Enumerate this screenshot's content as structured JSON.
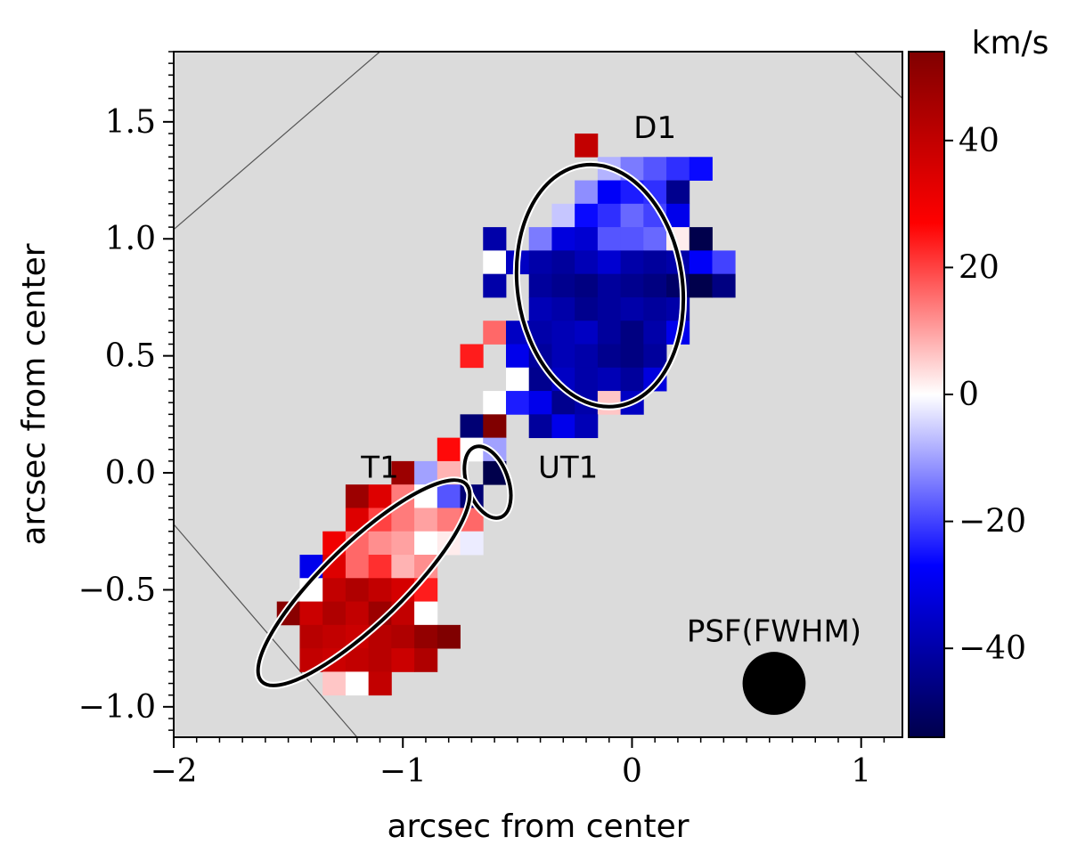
{
  "chart_data": {
    "type": "heatmap",
    "xlabel": "arcsec from center",
    "ylabel": "arcsec from center",
    "xlim": [
      -2.0,
      1.18
    ],
    "ylim": [
      -1.13,
      1.8
    ],
    "xticks": [
      -2,
      -1,
      0,
      1
    ],
    "xtick_labels": [
      "−2",
      "−1",
      "0",
      "1"
    ],
    "yticks": [
      -1.0,
      -0.5,
      0.0,
      0.5,
      1.0,
      1.5
    ],
    "ytick_labels": [
      "−1.0",
      "−0.5",
      "0.0",
      "0.5",
      "1.0",
      "1.5"
    ],
    "colorbar": {
      "label": "km/s",
      "colormap": "seismic",
      "range": [
        -54,
        54
      ],
      "ticks": [
        -40,
        -20,
        0,
        20,
        40
      ],
      "tick_labels": [
        "−40",
        "−20",
        "0",
        "20",
        "40"
      ]
    },
    "pixel_size_arcsec": 0.1,
    "pixels": [
      [
        -0.2,
        1.4,
        40
      ],
      [
        -0.1,
        1.3,
        -8
      ],
      [
        0.0,
        1.3,
        -14
      ],
      [
        0.1,
        1.3,
        -18
      ],
      [
        0.2,
        1.3,
        -22
      ],
      [
        0.3,
        1.3,
        -26
      ],
      [
        -0.2,
        1.2,
        -12
      ],
      [
        -0.1,
        1.2,
        -28
      ],
      [
        0.0,
        1.2,
        -24
      ],
      [
        0.1,
        1.2,
        -22
      ],
      [
        0.2,
        1.2,
        -44
      ],
      [
        -0.3,
        1.1,
        -6
      ],
      [
        -0.2,
        1.1,
        -26
      ],
      [
        -0.1,
        1.1,
        -22
      ],
      [
        0.0,
        1.1,
        -16
      ],
      [
        0.1,
        1.1,
        -20
      ],
      [
        0.2,
        1.1,
        -30
      ],
      [
        -0.6,
        1.0,
        -40
      ],
      [
        -0.4,
        1.0,
        -14
      ],
      [
        -0.3,
        1.0,
        -32
      ],
      [
        -0.2,
        1.0,
        -34
      ],
      [
        -0.1,
        1.0,
        -18
      ],
      [
        0.0,
        1.0,
        -18
      ],
      [
        0.1,
        1.0,
        -16
      ],
      [
        0.2,
        1.0,
        2
      ],
      [
        0.3,
        1.0,
        -54
      ],
      [
        -0.6,
        0.9,
        0
      ],
      [
        -0.5,
        0.9,
        -36
      ],
      [
        -0.4,
        0.9,
        -40
      ],
      [
        -0.3,
        0.9,
        -42
      ],
      [
        -0.2,
        0.9,
        -38
      ],
      [
        -0.1,
        0.9,
        -34
      ],
      [
        0.0,
        0.9,
        -40
      ],
      [
        0.1,
        0.9,
        -42
      ],
      [
        0.2,
        0.9,
        -40
      ],
      [
        0.3,
        0.9,
        -28
      ],
      [
        0.4,
        0.9,
        -20
      ],
      [
        -0.6,
        0.8,
        -40
      ],
      [
        -0.4,
        0.8,
        -42
      ],
      [
        -0.3,
        0.8,
        -44
      ],
      [
        -0.2,
        0.8,
        -46
      ],
      [
        -0.1,
        0.8,
        -42
      ],
      [
        0.0,
        0.8,
        -44
      ],
      [
        0.1,
        0.8,
        -46
      ],
      [
        0.2,
        0.8,
        -50
      ],
      [
        0.3,
        0.8,
        -54
      ],
      [
        0.4,
        0.8,
        -46
      ],
      [
        -0.4,
        0.7,
        -38
      ],
      [
        -0.3,
        0.7,
        -40
      ],
      [
        -0.2,
        0.7,
        -44
      ],
      [
        -0.1,
        0.7,
        -42
      ],
      [
        0.0,
        0.7,
        -40
      ],
      [
        0.1,
        0.7,
        -42
      ],
      [
        0.2,
        0.7,
        -40
      ],
      [
        -0.6,
        0.6,
        16
      ],
      [
        -0.5,
        0.6,
        -36
      ],
      [
        -0.4,
        0.6,
        -40
      ],
      [
        -0.3,
        0.6,
        -38
      ],
      [
        -0.2,
        0.6,
        -36
      ],
      [
        -0.1,
        0.6,
        -42
      ],
      [
        0.0,
        0.6,
        -46
      ],
      [
        0.1,
        0.6,
        -40
      ],
      [
        0.2,
        0.6,
        -30
      ],
      [
        -0.7,
        0.5,
        24
      ],
      [
        -0.5,
        0.5,
        -30
      ],
      [
        -0.4,
        0.5,
        -42
      ],
      [
        -0.3,
        0.5,
        -38
      ],
      [
        -0.2,
        0.5,
        -40
      ],
      [
        -0.1,
        0.5,
        -44
      ],
      [
        0.0,
        0.5,
        -46
      ],
      [
        0.1,
        0.5,
        -42
      ],
      [
        -0.5,
        0.4,
        0
      ],
      [
        -0.4,
        0.4,
        -44
      ],
      [
        -0.3,
        0.4,
        -36
      ],
      [
        -0.2,
        0.4,
        -40
      ],
      [
        -0.1,
        0.4,
        -38
      ],
      [
        0.0,
        0.4,
        -42
      ],
      [
        0.1,
        0.4,
        -32
      ],
      [
        -0.6,
        0.3,
        0
      ],
      [
        -0.5,
        0.3,
        -24
      ],
      [
        -0.4,
        0.3,
        -30
      ],
      [
        -0.3,
        0.3,
        -44
      ],
      [
        -0.2,
        0.3,
        -40
      ],
      [
        -0.1,
        0.3,
        6
      ],
      [
        0.0,
        0.3,
        -36
      ],
      [
        -0.4,
        0.2,
        -42
      ],
      [
        -0.3,
        0.2,
        -30
      ],
      [
        -0.2,
        0.2,
        -38
      ],
      [
        -0.7,
        0.2,
        -48
      ],
      [
        -0.6,
        0.2,
        54
      ],
      [
        -0.8,
        0.1,
        26
      ],
      [
        -0.7,
        0.1,
        0
      ],
      [
        -0.6,
        0.1,
        -10
      ],
      [
        -1.0,
        0.0,
        48
      ],
      [
        -0.9,
        0.0,
        -10
      ],
      [
        -0.8,
        0.0,
        8
      ],
      [
        -0.6,
        0.0,
        -54
      ],
      [
        -1.2,
        -0.1,
        48
      ],
      [
        -1.1,
        -0.1,
        34
      ],
      [
        -1.0,
        -0.1,
        14
      ],
      [
        -0.9,
        -0.1,
        0
      ],
      [
        -0.8,
        -0.1,
        -18
      ],
      [
        -0.7,
        -0.1,
        -48
      ],
      [
        -1.2,
        -0.2,
        34
      ],
      [
        -1.1,
        -0.2,
        20
      ],
      [
        -1.0,
        -0.2,
        14
      ],
      [
        -0.9,
        -0.2,
        10
      ],
      [
        -0.8,
        -0.2,
        14
      ],
      [
        -0.7,
        -0.2,
        16
      ],
      [
        -1.3,
        -0.3,
        30
      ],
      [
        -1.2,
        -0.3,
        16
      ],
      [
        -1.1,
        -0.3,
        12
      ],
      [
        -1.0,
        -0.3,
        10
      ],
      [
        -0.9,
        -0.3,
        0
      ],
      [
        -0.8,
        -0.3,
        2
      ],
      [
        -0.7,
        -0.3,
        -2
      ],
      [
        -1.4,
        -0.4,
        -30
      ],
      [
        -1.3,
        -0.4,
        34
      ],
      [
        -1.2,
        -0.4,
        16
      ],
      [
        -1.1,
        -0.4,
        22
      ],
      [
        -1.0,
        -0.4,
        8
      ],
      [
        -0.9,
        -0.4,
        12
      ],
      [
        -1.4,
        -0.5,
        0
      ],
      [
        -1.3,
        -0.5,
        40
      ],
      [
        -1.2,
        -0.5,
        44
      ],
      [
        -1.1,
        -0.5,
        40
      ],
      [
        -1.0,
        -0.5,
        36
      ],
      [
        -0.9,
        -0.5,
        24
      ],
      [
        -1.5,
        -0.6,
        52
      ],
      [
        -1.4,
        -0.6,
        38
      ],
      [
        -1.3,
        -0.6,
        44
      ],
      [
        -1.2,
        -0.6,
        40
      ],
      [
        -1.1,
        -0.6,
        48
      ],
      [
        -1.0,
        -0.6,
        40
      ],
      [
        -0.9,
        -0.6,
        0
      ],
      [
        -1.4,
        -0.7,
        42
      ],
      [
        -1.3,
        -0.7,
        40
      ],
      [
        -1.2,
        -0.7,
        38
      ],
      [
        -1.1,
        -0.7,
        42
      ],
      [
        -1.0,
        -0.7,
        44
      ],
      [
        -0.9,
        -0.7,
        50
      ],
      [
        -0.8,
        -0.7,
        54
      ],
      [
        -1.4,
        -0.8,
        40
      ],
      [
        -1.3,
        -0.8,
        38
      ],
      [
        -1.2,
        -0.8,
        40
      ],
      [
        -1.1,
        -0.8,
        42
      ],
      [
        -1.0,
        -0.8,
        38
      ],
      [
        -0.9,
        -0.8,
        44
      ],
      [
        -1.3,
        -0.9,
        6
      ],
      [
        -1.2,
        -0.9,
        0
      ],
      [
        -1.1,
        -0.9,
        40
      ]
    ],
    "regions": [
      {
        "name": "D1",
        "cx": -0.14,
        "cy": 0.8,
        "rx": 0.36,
        "ry": 0.52,
        "angle": 8
      },
      {
        "name": "UT1",
        "cx": -0.63,
        "cy": -0.04,
        "rx": 0.09,
        "ry": 0.16,
        "angle": 20
      },
      {
        "name": "T1",
        "cx": -1.17,
        "cy": -0.47,
        "rx": 0.62,
        "ry": 0.17,
        "angle": 44
      }
    ],
    "psf_label": "PSF(FWHM)",
    "psf": {
      "cx": 0.62,
      "cy": -0.9,
      "diameter": 0.22
    },
    "footprint_lines": [
      [
        [
          -2.0,
          1.04
        ],
        [
          -1.1,
          1.8
        ]
      ],
      [
        [
          -2.0,
          -0.22
        ],
        [
          -1.2,
          -1.13
        ]
      ],
      [
        [
          0.97,
          1.8
        ],
        [
          1.18,
          1.6
        ]
      ]
    ]
  }
}
